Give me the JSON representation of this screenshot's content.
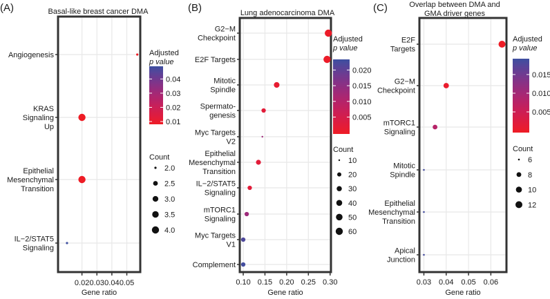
{
  "chart_data": [
    {
      "type": "scatter",
      "panel_label": "(A)",
      "title_lines": [
        "Basal-like breast cancer DMA"
      ],
      "xlabel": "Gene ratio",
      "xlim": [
        0.004,
        0.059
      ],
      "xticks": [
        0.02,
        0.03,
        0.04,
        0.05
      ],
      "xtick_labels": [
        "0.02",
        "0.03",
        "0.04",
        "0.05"
      ],
      "categories": [
        {
          "label_lines": [
            "Angiogenesis"
          ],
          "gene_ratio": 0.057,
          "count": 1,
          "p_adj": 0.01
        },
        {
          "label_lines": [
            "KRAS",
            "Signaling",
            "Up"
          ],
          "gene_ratio": 0.02,
          "count": 4,
          "p_adj": 0.01
        },
        {
          "label_lines": [
            "Epithelial",
            "Mesenchymal",
            "Transition"
          ],
          "gene_ratio": 0.02,
          "count": 4,
          "p_adj": 0.01
        },
        {
          "label_lines": [
            "IL−2/STAT5",
            "Signaling"
          ],
          "gene_ratio": 0.01,
          "count": 2,
          "p_adj": 0.047
        }
      ],
      "color_legend": {
        "title_lines": [
          "Adjusted",
          "p value"
        ],
        "range": [
          0.01,
          0.047
        ],
        "ticks": [
          0.04,
          0.03,
          0.02,
          0.01
        ],
        "tick_labels": [
          "0.04",
          "0.03",
          "0.02",
          "0.01"
        ],
        "low_color": "#ee1c25",
        "high_color": "#3d4fa0"
      },
      "size_legend": {
        "title": "Count",
        "values": [
          2.0,
          2.5,
          3.0,
          3.5,
          4.0
        ],
        "labels": [
          "2.0",
          "2.5",
          "3.0",
          "3.5",
          "4.0"
        ]
      }
    },
    {
      "type": "scatter",
      "panel_label": "(B)",
      "title_lines": [
        "Lung adenocarcinoma DMA"
      ],
      "xlabel": "Gene ratio",
      "xlim": [
        0.092,
        0.302
      ],
      "xticks": [
        0.1,
        0.15,
        0.2,
        0.25,
        0.3
      ],
      "xtick_labels": [
        "0.10",
        "0.15",
        "0.20",
        "0.25",
        "0.30"
      ],
      "categories": [
        {
          "label_lines": [
            "G2−M",
            "Checkpoint"
          ],
          "gene_ratio": 0.296,
          "count": 60,
          "p_adj": 0.001
        },
        {
          "label_lines": [
            "E2F Targets"
          ],
          "gene_ratio": 0.293,
          "count": 60,
          "p_adj": 0.001
        },
        {
          "label_lines": [
            "Mitotic",
            "Spindle"
          ],
          "gene_ratio": 0.177,
          "count": 36,
          "p_adj": 0.002
        },
        {
          "label_lines": [
            "Spermato-",
            "genesis"
          ],
          "gene_ratio": 0.147,
          "count": 22,
          "p_adj": 0.003
        },
        {
          "label_lines": [
            "Myc Targets",
            "V2"
          ],
          "gene_ratio": 0.144,
          "count": 8,
          "p_adj": 0.013
        },
        {
          "label_lines": [
            "Epithelial",
            "Mesenchymal",
            "Transition"
          ],
          "gene_ratio": 0.135,
          "count": 28,
          "p_adj": 0.003
        },
        {
          "label_lines": [
            "IL−2/STAT5",
            "Signaling"
          ],
          "gene_ratio": 0.115,
          "count": 22,
          "p_adj": 0.003
        },
        {
          "label_lines": [
            "mTORC1",
            "Signaling"
          ],
          "gene_ratio": 0.108,
          "count": 22,
          "p_adj": 0.013
        },
        {
          "label_lines": [
            "Myc Targets",
            "V1"
          ],
          "gene_ratio": 0.1,
          "count": 22,
          "p_adj": 0.021
        },
        {
          "label_lines": [
            "Complement"
          ],
          "gene_ratio": 0.1,
          "count": 22,
          "p_adj": 0.022
        }
      ],
      "color_legend": {
        "title_lines": [
          "Adjusted",
          "p value"
        ],
        "range": [
          0.0005,
          0.0225
        ],
        "ticks": [
          0.02,
          0.015,
          0.01,
          0.005
        ],
        "tick_labels": [
          "0.020",
          "0.015",
          "0.010",
          "0.005"
        ],
        "low_color": "#ee1c25",
        "high_color": "#3d4fa0"
      },
      "size_legend": {
        "title": "Count",
        "values": [
          10,
          20,
          30,
          40,
          50,
          60
        ],
        "labels": [
          "10",
          "20",
          "30",
          "40",
          "50",
          "60"
        ]
      }
    },
    {
      "type": "scatter",
      "panel_label": "(C)",
      "title_lines": [
        "Overlap between DMA and",
        "GMA driver genes"
      ],
      "xlabel": "Gene ratio",
      "xlim": [
        0.028,
        0.067
      ],
      "xticks": [
        0.03,
        0.04,
        0.05,
        0.06
      ],
      "xtick_labels": [
        "0.03",
        "0.04",
        "0.05",
        "0.06"
      ],
      "categories": [
        {
          "label_lines": [
            "E2F",
            "Targets"
          ],
          "gene_ratio": 0.065,
          "count": 13,
          "p_adj": 0.0002
        },
        {
          "label_lines": [
            "G2−M",
            "Checkpoint"
          ],
          "gene_ratio": 0.04,
          "count": 9,
          "p_adj": 0.001
        },
        {
          "label_lines": [
            "mTORC1",
            "Signaling"
          ],
          "gene_ratio": 0.035,
          "count": 8,
          "p_adj": 0.008
        },
        {
          "label_lines": [
            "Mitotic",
            "Spindle"
          ],
          "gene_ratio": 0.03,
          "count": 6,
          "p_adj": 0.018
        },
        {
          "label_lines": [
            "Epithelial",
            "Mesenchymal",
            "Transition"
          ],
          "gene_ratio": 0.03,
          "count": 6,
          "p_adj": 0.018
        },
        {
          "label_lines": [
            "Apical",
            "Junction"
          ],
          "gene_ratio": 0.03,
          "count": 6,
          "p_adj": 0.018
        }
      ],
      "color_legend": {
        "title_lines": [
          "Adjusted",
          "p value"
        ],
        "range": [
          0.0002,
          0.0185
        ],
        "ticks": [
          0.015,
          0.01,
          0.005
        ],
        "tick_labels": [
          "0.015",
          "0.010",
          "0.005"
        ],
        "low_color": "#ee1c25",
        "high_color": "#3d4fa0"
      },
      "size_legend": {
        "title": "Count",
        "values": [
          6,
          8,
          10,
          12
        ],
        "labels": [
          "6",
          "8",
          "10",
          "12"
        ]
      }
    }
  ]
}
